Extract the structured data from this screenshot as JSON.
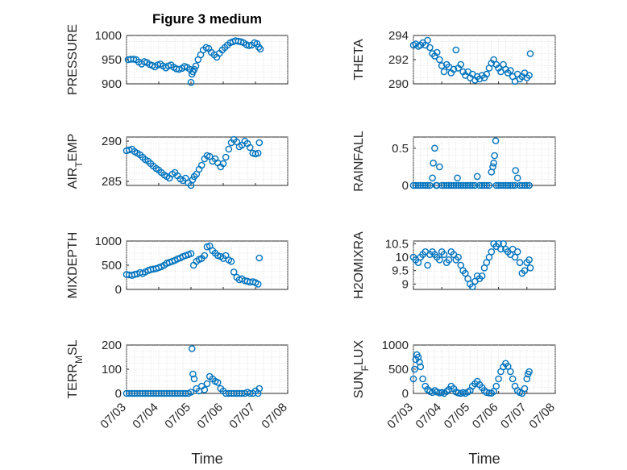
{
  "figure": {
    "title": "Figure 3 medium",
    "marker_color": "#0072BD",
    "x_tick_labels": [
      "07/03",
      "07/04",
      "07/05",
      "07/06",
      "07/07",
      "07/08"
    ],
    "xlabel": "Time"
  },
  "chart_data": [
    {
      "type": "scatter",
      "ylabel": "PRESSURE",
      "ylim": [
        900,
        1000
      ],
      "yticks": [
        900,
        950,
        1000
      ],
      "xlim": [
        0,
        5
      ],
      "grid": true,
      "x": [
        0.05,
        0.13,
        0.22,
        0.3,
        0.38,
        0.47,
        0.55,
        0.63,
        0.72,
        0.8,
        0.88,
        0.97,
        1.05,
        1.13,
        1.22,
        1.3,
        1.38,
        1.47,
        1.55,
        1.63,
        1.72,
        1.8,
        1.88,
        1.97,
        2.0,
        2.03,
        2.06,
        2.1,
        2.15,
        2.22,
        2.3,
        2.38,
        2.47,
        2.55,
        2.63,
        2.72,
        2.8,
        2.88,
        2.97,
        3.05,
        3.13,
        3.22,
        3.3,
        3.38,
        3.47,
        3.55,
        3.63,
        3.72,
        3.8,
        3.88,
        3.97,
        4.05,
        4.1,
        4.15
      ],
      "y": [
        950,
        951,
        951,
        950,
        945,
        941,
        946,
        944,
        940,
        938,
        935,
        939,
        941,
        937,
        933,
        937,
        939,
        934,
        931,
        930,
        932,
        936,
        934,
        930,
        903,
        920,
        925,
        930,
        937,
        950,
        960,
        970,
        975,
        973,
        965,
        960,
        955,
        963,
        970,
        975,
        980,
        985,
        987,
        989,
        988,
        987,
        985,
        981,
        979,
        980,
        985,
        983,
        976,
        972
      ]
    },
    {
      "type": "scatter",
      "ylabel": "THETA",
      "ylim": [
        290,
        294
      ],
      "yticks": [
        290,
        292,
        294
      ],
      "xlim": [
        0,
        5
      ],
      "grid": true,
      "x": [
        0.0,
        0.08,
        0.17,
        0.25,
        0.33,
        0.42,
        0.5,
        0.58,
        0.67,
        0.75,
        0.83,
        0.92,
        1.0,
        1.08,
        1.17,
        1.25,
        1.33,
        1.42,
        1.5,
        1.58,
        1.67,
        1.75,
        1.83,
        1.92,
        2.0,
        2.08,
        2.17,
        2.25,
        2.33,
        2.42,
        2.5,
        2.58,
        2.67,
        2.75,
        2.83,
        2.92,
        3.0,
        3.08,
        3.17,
        3.25,
        3.33,
        3.42,
        3.5,
        3.58,
        3.67,
        3.75,
        3.83,
        3.92,
        4.0,
        4.08,
        4.12
      ],
      "y": [
        293.2,
        293.3,
        293.1,
        293.2,
        293.4,
        293.2,
        293.6,
        293.0,
        292.5,
        292.3,
        292.6,
        292.0,
        291.5,
        291.0,
        291.6,
        291.4,
        290.9,
        291.2,
        292.8,
        291.3,
        291.6,
        291.0,
        290.7,
        291.0,
        290.5,
        290.8,
        290.3,
        290.6,
        290.4,
        290.7,
        290.5,
        290.8,
        291.3,
        291.7,
        292.0,
        291.6,
        291.3,
        291.0,
        291.6,
        291.2,
        290.9,
        291.1,
        290.6,
        290.2,
        290.8,
        290.4,
        290.6,
        290.9,
        290.5,
        290.7,
        292.5
      ]
    },
    {
      "type": "scatter",
      "ylabel": "AIR_TEMP",
      "ylim": [
        284.5,
        290.5
      ],
      "yticks": [
        285,
        290
      ],
      "xlim": [
        0,
        5
      ],
      "grid": true,
      "x": [
        0.0,
        0.08,
        0.17,
        0.25,
        0.33,
        0.42,
        0.5,
        0.58,
        0.67,
        0.75,
        0.83,
        0.92,
        1.0,
        1.08,
        1.17,
        1.25,
        1.33,
        1.42,
        1.5,
        1.58,
        1.67,
        1.75,
        1.83,
        1.92,
        2.0,
        2.05,
        2.1,
        2.17,
        2.25,
        2.33,
        2.42,
        2.5,
        2.58,
        2.67,
        2.75,
        2.83,
        2.92,
        3.0,
        3.08,
        3.17,
        3.25,
        3.33,
        3.42,
        3.5,
        3.58,
        3.67,
        3.75,
        3.83,
        3.92,
        4.0,
        4.08,
        4.12
      ],
      "y": [
        288.8,
        288.9,
        289.0,
        288.7,
        288.5,
        288.3,
        288.0,
        287.7,
        287.5,
        287.2,
        286.9,
        286.6,
        286.4,
        286.1,
        285.8,
        285.6,
        285.4,
        285.9,
        286.1,
        285.7,
        285.3,
        285.1,
        285.4,
        284.8,
        284.5,
        285.2,
        285.6,
        285.9,
        286.5,
        287.0,
        287.8,
        288.2,
        288.1,
        287.5,
        287.8,
        287.3,
        286.8,
        287.2,
        288.0,
        289.0,
        289.8,
        290.2,
        289.9,
        289.3,
        289.5,
        290.0,
        289.7,
        289.2,
        288.5,
        288.4,
        288.5,
        289.8
      ]
    },
    {
      "type": "scatter",
      "ylabel": "RAINFALL",
      "ylim": [
        0,
        0.65
      ],
      "yticks": [
        0,
        0.5
      ],
      "xlim": [
        0,
        5
      ],
      "grid": true,
      "x": [
        0.0,
        0.08,
        0.17,
        0.25,
        0.33,
        0.42,
        0.5,
        0.58,
        0.67,
        0.7,
        0.75,
        0.8,
        0.83,
        0.92,
        1.0,
        1.08,
        1.17,
        1.25,
        1.33,
        1.42,
        1.5,
        1.55,
        1.58,
        1.67,
        1.75,
        1.83,
        1.92,
        2.0,
        2.08,
        2.17,
        2.25,
        2.33,
        2.42,
        2.5,
        2.58,
        2.67,
        2.75,
        2.8,
        2.83,
        2.86,
        2.9,
        2.92,
        3.0,
        3.08,
        3.17,
        3.25,
        3.33,
        3.42,
        3.5,
        3.58,
        3.6,
        3.67,
        3.75,
        3.83,
        3.92,
        4.0,
        4.08
      ],
      "y": [
        0,
        0,
        0,
        0,
        0,
        0,
        0,
        0,
        0.1,
        0.3,
        0.5,
        0,
        0,
        0.25,
        0,
        0,
        0,
        0,
        0,
        0,
        0,
        0.1,
        0,
        0,
        0,
        0,
        0,
        0,
        0,
        0,
        0.12,
        0,
        0,
        0,
        0,
        0,
        0.18,
        0.25,
        0.3,
        0.4,
        0.6,
        0,
        0,
        0,
        0,
        0,
        0,
        0,
        0,
        0,
        0.2,
        0.1,
        0,
        0,
        0,
        0,
        0
      ]
    },
    {
      "type": "scatter",
      "ylabel": "MIXDEPTH",
      "ylim": [
        0,
        1000
      ],
      "yticks": [
        0,
        500,
        1000
      ],
      "xlim": [
        0,
        5
      ],
      "grid": true,
      "x": [
        0.0,
        0.08,
        0.17,
        0.25,
        0.33,
        0.42,
        0.5,
        0.58,
        0.67,
        0.75,
        0.83,
        0.92,
        1.0,
        1.08,
        1.17,
        1.25,
        1.33,
        1.42,
        1.5,
        1.58,
        1.67,
        1.75,
        1.83,
        1.92,
        2.0,
        2.08,
        2.17,
        2.25,
        2.33,
        2.42,
        2.5,
        2.58,
        2.67,
        2.75,
        2.83,
        2.92,
        3.0,
        3.08,
        3.17,
        3.25,
        3.33,
        3.42,
        3.5,
        3.58,
        3.67,
        3.75,
        3.83,
        3.92,
        4.0,
        4.08,
        4.12
      ],
      "y": [
        310,
        300,
        290,
        310,
        320,
        350,
        330,
        360,
        390,
        410,
        420,
        430,
        450,
        470,
        500,
        540,
        560,
        580,
        600,
        630,
        650,
        680,
        700,
        720,
        740,
        500,
        580,
        620,
        640,
        700,
        880,
        900,
        800,
        750,
        700,
        680,
        640,
        700,
        610,
        580,
        360,
        250,
        200,
        220,
        180,
        170,
        150,
        160,
        140,
        110,
        650
      ]
    },
    {
      "type": "scatter",
      "ylabel": "H2OMIXRA",
      "ylim": [
        8.8,
        10.6
      ],
      "yticks": [
        9,
        9.5,
        10,
        10.5
      ],
      "xlim": [
        0,
        5
      ],
      "grid": true,
      "x": [
        0.0,
        0.08,
        0.17,
        0.25,
        0.33,
        0.42,
        0.5,
        0.58,
        0.67,
        0.75,
        0.83,
        0.92,
        1.0,
        1.08,
        1.17,
        1.25,
        1.33,
        1.42,
        1.5,
        1.58,
        1.67,
        1.75,
        1.83,
        1.92,
        2.0,
        2.08,
        2.17,
        2.25,
        2.33,
        2.42,
        2.5,
        2.58,
        2.67,
        2.75,
        2.83,
        2.92,
        3.0,
        3.08,
        3.17,
        3.25,
        3.33,
        3.42,
        3.5,
        3.58,
        3.67,
        3.75,
        3.83,
        3.92,
        4.0,
        4.08,
        4.12
      ],
      "y": [
        10.0,
        9.9,
        9.8,
        10.0,
        10.1,
        10.2,
        9.7,
        10.1,
        10.2,
        10.1,
        10.0,
        9.9,
        10.2,
        10.1,
        9.8,
        9.9,
        10.2,
        10.1,
        9.9,
        10.0,
        9.7,
        9.5,
        9.4,
        9.2,
        9.0,
        8.9,
        9.1,
        9.3,
        9.2,
        9.3,
        9.6,
        9.8,
        10.0,
        10.2,
        10.5,
        10.4,
        10.5,
        10.3,
        10.5,
        10.3,
        10.2,
        10.1,
        10.3,
        10.0,
        10.2,
        9.8,
        9.4,
        9.5,
        9.8,
        9.9,
        9.6
      ]
    },
    {
      "type": "scatter",
      "ylabel": "TERR_MSL",
      "ylim": [
        0,
        200
      ],
      "yticks": [
        0,
        100,
        200
      ],
      "xlim": [
        0,
        5
      ],
      "grid": true,
      "x": [
        0.0,
        0.08,
        0.17,
        0.25,
        0.33,
        0.42,
        0.5,
        0.58,
        0.67,
        0.75,
        0.83,
        0.92,
        1.0,
        1.08,
        1.17,
        1.25,
        1.33,
        1.42,
        1.5,
        1.58,
        1.67,
        1.75,
        1.83,
        1.92,
        2.0,
        2.03,
        2.06,
        2.1,
        2.17,
        2.25,
        2.33,
        2.42,
        2.5,
        2.58,
        2.67,
        2.75,
        2.83,
        2.92,
        3.0,
        3.08,
        3.17,
        3.25,
        3.33,
        3.42,
        3.5,
        3.58,
        3.67,
        3.75,
        3.83,
        3.92,
        4.0,
        4.08,
        4.12
      ],
      "y": [
        0,
        0,
        0,
        0,
        0,
        0,
        0,
        0,
        0,
        0,
        0,
        0,
        0,
        0,
        0,
        0,
        0,
        0,
        0,
        0,
        0,
        0,
        0,
        0,
        5,
        185,
        80,
        60,
        20,
        10,
        30,
        15,
        40,
        70,
        60,
        50,
        45,
        20,
        10,
        0,
        0,
        0,
        0,
        0,
        0,
        0,
        0,
        5,
        0,
        0,
        10,
        0,
        20
      ]
    },
    {
      "type": "scatter",
      "ylabel": "SUN_FLUX",
      "ylim": [
        0,
        1000
      ],
      "yticks": [
        0,
        500,
        1000
      ],
      "xlim": [
        0,
        5
      ],
      "grid": true,
      "x": [
        0.0,
        0.04,
        0.08,
        0.12,
        0.17,
        0.21,
        0.25,
        0.33,
        0.42,
        0.5,
        0.58,
        0.67,
        0.75,
        0.83,
        0.92,
        1.0,
        1.08,
        1.17,
        1.25,
        1.33,
        1.42,
        1.5,
        1.58,
        1.67,
        1.75,
        1.83,
        1.92,
        2.0,
        2.08,
        2.17,
        2.25,
        2.33,
        2.42,
        2.5,
        2.58,
        2.67,
        2.75,
        2.83,
        2.92,
        3.0,
        3.08,
        3.17,
        3.25,
        3.33,
        3.42,
        3.5,
        3.58,
        3.67,
        3.75,
        3.83,
        3.92,
        4.0,
        4.04,
        4.08
      ],
      "y": [
        300,
        500,
        700,
        800,
        750,
        650,
        550,
        300,
        150,
        80,
        40,
        20,
        60,
        30,
        10,
        20,
        0,
        40,
        80,
        150,
        100,
        30,
        10,
        0,
        20,
        0,
        30,
        60,
        150,
        200,
        250,
        180,
        120,
        60,
        20,
        10,
        5,
        40,
        150,
        300,
        450,
        550,
        620,
        560,
        450,
        300,
        150,
        60,
        20,
        0,
        100,
        300,
        400,
        450
      ]
    }
  ]
}
